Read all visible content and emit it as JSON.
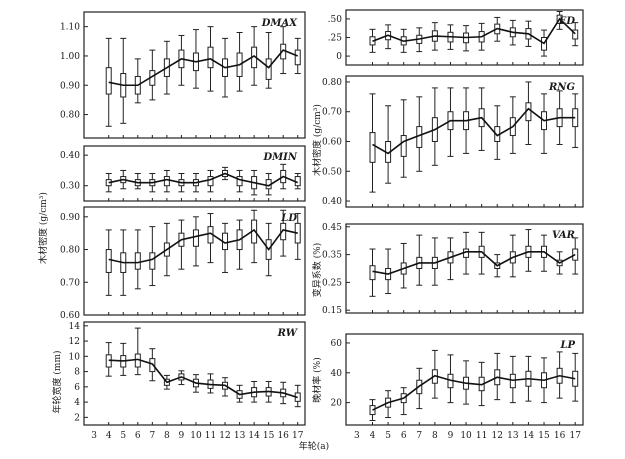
{
  "figure": {
    "shared_ylabels": {
      "density_left": "木材密度 (g/cm³)",
      "width_left": "年轮宽度 (mm)",
      "density_right": "木材密度 (g/cm³)",
      "var_right": "变异系数 (%)",
      "lp_right": "晚材率 (%)"
    },
    "xlabel": "年轮(a)"
  },
  "chart_data": [
    {
      "type": "box",
      "title": "DMAX",
      "ylim": [
        0.72,
        1.15
      ],
      "yticks": [
        0.8,
        0.9,
        1.0,
        1.1
      ],
      "ytick_labels": [
        "0.80",
        "0.90",
        "1.00",
        "1.10"
      ],
      "x": [
        4,
        5,
        6,
        7,
        8,
        9,
        10,
        11,
        12,
        13,
        14,
        15,
        16,
        17
      ],
      "xticks": [],
      "median": [
        0.91,
        0.9,
        0.9,
        0.93,
        0.96,
        0.99,
        0.98,
        0.99,
        0.96,
        0.97,
        1.0,
        0.96,
        1.02,
        1.0
      ],
      "q1": [
        0.87,
        0.86,
        0.87,
        0.9,
        0.93,
        0.96,
        0.95,
        0.96,
        0.93,
        0.93,
        0.96,
        0.92,
        0.99,
        0.97
      ],
      "q3": [
        0.96,
        0.94,
        0.93,
        0.95,
        0.99,
        1.02,
        1.01,
        1.03,
        0.99,
        1.01,
        1.03,
        0.99,
        1.04,
        1.02
      ],
      "whisker_low": [
        0.76,
        0.77,
        0.84,
        0.85,
        0.87,
        0.9,
        0.89,
        0.88,
        0.86,
        0.88,
        0.9,
        0.89,
        0.94,
        0.94
      ],
      "whisker_high": [
        1.06,
        1.06,
        0.99,
        1.02,
        1.05,
        1.07,
        1.09,
        1.1,
        1.06,
        1.08,
        1.1,
        1.08,
        1.1,
        1.06
      ]
    },
    {
      "type": "box",
      "title": "DMIN",
      "ylim": [
        0.25,
        0.43
      ],
      "yticks": [
        0.3,
        0.4
      ],
      "ytick_labels": [
        "0.30",
        "0.40"
      ],
      "x": [
        4,
        5,
        6,
        7,
        8,
        9,
        10,
        11,
        12,
        13,
        14,
        15,
        16,
        17
      ],
      "xticks": [],
      "median": [
        0.31,
        0.32,
        0.31,
        0.31,
        0.32,
        0.31,
        0.31,
        0.32,
        0.34,
        0.32,
        0.31,
        0.3,
        0.33,
        0.31
      ],
      "q1": [
        0.3,
        0.31,
        0.3,
        0.3,
        0.3,
        0.3,
        0.3,
        0.3,
        0.33,
        0.3,
        0.29,
        0.29,
        0.31,
        0.3
      ],
      "q3": [
        0.32,
        0.33,
        0.32,
        0.32,
        0.33,
        0.32,
        0.32,
        0.33,
        0.35,
        0.33,
        0.33,
        0.32,
        0.35,
        0.33
      ],
      "whisker_low": [
        0.28,
        0.29,
        0.29,
        0.28,
        0.28,
        0.28,
        0.28,
        0.28,
        0.32,
        0.28,
        0.27,
        0.27,
        0.29,
        0.29
      ],
      "whisker_high": [
        0.34,
        0.35,
        0.34,
        0.34,
        0.35,
        0.34,
        0.34,
        0.35,
        0.36,
        0.35,
        0.35,
        0.34,
        0.37,
        0.34
      ]
    },
    {
      "type": "box",
      "title": "LD",
      "ylim": [
        0.6,
        0.93
      ],
      "yticks": [
        0.6,
        0.7,
        0.8,
        0.9
      ],
      "ytick_labels": [
        "0.60",
        "0.70",
        "0.80",
        "0.90"
      ],
      "x": [
        4,
        5,
        6,
        7,
        8,
        9,
        10,
        11,
        12,
        13,
        14,
        15,
        16,
        17
      ],
      "xticks": [],
      "median": [
        0.77,
        0.76,
        0.76,
        0.77,
        0.8,
        0.83,
        0.84,
        0.85,
        0.82,
        0.83,
        0.86,
        0.8,
        0.86,
        0.85
      ],
      "q1": [
        0.73,
        0.73,
        0.74,
        0.74,
        0.78,
        0.81,
        0.81,
        0.82,
        0.8,
        0.8,
        0.82,
        0.77,
        0.83,
        0.82
      ],
      "q3": [
        0.8,
        0.79,
        0.79,
        0.79,
        0.82,
        0.85,
        0.86,
        0.87,
        0.85,
        0.86,
        0.89,
        0.83,
        0.88,
        0.88
      ],
      "whisker_low": [
        0.66,
        0.66,
        0.68,
        0.69,
        0.72,
        0.74,
        0.75,
        0.76,
        0.73,
        0.74,
        0.76,
        0.72,
        0.78,
        0.77
      ],
      "whisker_high": [
        0.86,
        0.86,
        0.86,
        0.87,
        0.88,
        0.89,
        0.9,
        0.91,
        0.88,
        0.89,
        0.92,
        0.88,
        0.92,
        0.91
      ]
    },
    {
      "type": "box",
      "title": "RW",
      "ylim": [
        1,
        14.5
      ],
      "yticks": [
        2,
        4,
        6,
        8,
        10,
        12,
        14
      ],
      "ytick_labels": [
        "2",
        "4",
        "6",
        "8",
        "10",
        "12",
        "14"
      ],
      "x": [
        4,
        5,
        6,
        7,
        8,
        9,
        10,
        11,
        12,
        13,
        14,
        15,
        16,
        17
      ],
      "xticks": [
        3,
        4,
        5,
        6,
        7,
        8,
        9,
        10,
        11,
        12,
        13,
        14,
        15,
        16,
        17
      ],
      "median": [
        9.5,
        9.4,
        9.6,
        9.0,
        6.6,
        7.3,
        6.5,
        6.3,
        6.2,
        5.0,
        5.3,
        5.4,
        5.2,
        4.6
      ],
      "q1": [
        8.6,
        8.6,
        8.6,
        8.0,
        6.2,
        6.9,
        6.0,
        5.8,
        5.7,
        4.5,
        4.7,
        4.8,
        4.7,
        4.1
      ],
      "q3": [
        10.2,
        10.1,
        10.3,
        9.7,
        7.0,
        7.7,
        7.0,
        6.9,
        6.6,
        5.5,
        5.9,
        5.9,
        5.7,
        5.2
      ],
      "whisker_low": [
        7.4,
        7.5,
        7.6,
        6.8,
        5.7,
        6.3,
        5.3,
        5.2,
        4.8,
        4.0,
        4.0,
        4.0,
        3.8,
        3.4
      ],
      "whisker_high": [
        11.8,
        11.7,
        13.7,
        11.0,
        7.5,
        8.1,
        7.6,
        7.7,
        7.2,
        6.2,
        6.7,
        6.7,
        6.6,
        6.2
      ]
    },
    {
      "type": "box",
      "title": "ED",
      "ylim": [
        -0.12,
        0.62
      ],
      "yticks": [
        0,
        0.25,
        0.5
      ],
      "ytick_labels": [
        "0",
        ".25",
        ".50"
      ],
      "x": [
        4,
        5,
        6,
        7,
        8,
        9,
        10,
        11,
        12,
        13,
        14,
        15,
        16,
        17
      ],
      "xticks": [],
      "median": [
        0.2,
        0.28,
        0.2,
        0.23,
        0.27,
        0.26,
        0.25,
        0.26,
        0.37,
        0.32,
        0.3,
        0.17,
        0.5,
        0.3
      ],
      "q1": [
        0.15,
        0.22,
        0.15,
        0.17,
        0.2,
        0.19,
        0.18,
        0.19,
        0.3,
        0.26,
        0.23,
        0.08,
        0.44,
        0.23
      ],
      "q3": [
        0.26,
        0.33,
        0.26,
        0.28,
        0.34,
        0.32,
        0.31,
        0.33,
        0.43,
        0.38,
        0.37,
        0.25,
        0.55,
        0.35
      ],
      "whisker_low": [
        0.05,
        0.1,
        0.05,
        0.06,
        0.08,
        0.09,
        0.07,
        0.08,
        0.2,
        0.15,
        0.13,
        0.0,
        0.36,
        0.14
      ],
      "whisker_high": [
        0.36,
        0.42,
        0.36,
        0.38,
        0.45,
        0.42,
        0.41,
        0.44,
        0.52,
        0.48,
        0.47,
        0.35,
        0.6,
        0.45
      ]
    },
    {
      "type": "box",
      "title": "RNG",
      "ylim": [
        0.38,
        0.82
      ],
      "yticks": [
        0.4,
        0.5,
        0.6,
        0.7,
        0.8
      ],
      "ytick_labels": [
        "0.40",
        "0.50",
        "0.60",
        "0.70",
        "0.80"
      ],
      "x": [
        4,
        5,
        6,
        7,
        8,
        9,
        10,
        11,
        12,
        13,
        14,
        15,
        16,
        17
      ],
      "xticks": [],
      "median": [
        0.59,
        0.56,
        0.6,
        0.62,
        0.64,
        0.67,
        0.67,
        0.68,
        0.62,
        0.65,
        0.71,
        0.67,
        0.68,
        0.68
      ],
      "q1": [
        0.53,
        0.53,
        0.55,
        0.58,
        0.6,
        0.64,
        0.64,
        0.65,
        0.6,
        0.62,
        0.67,
        0.64,
        0.65,
        0.65
      ],
      "q3": [
        0.63,
        0.6,
        0.62,
        0.65,
        0.68,
        0.7,
        0.7,
        0.71,
        0.65,
        0.68,
        0.73,
        0.7,
        0.71,
        0.71
      ],
      "whisker_low": [
        0.43,
        0.46,
        0.48,
        0.5,
        0.52,
        0.55,
        0.56,
        0.57,
        0.54,
        0.56,
        0.59,
        0.56,
        0.59,
        0.58
      ],
      "whisker_high": [
        0.76,
        0.72,
        0.74,
        0.75,
        0.78,
        0.78,
        0.78,
        0.78,
        0.72,
        0.75,
        0.8,
        0.76,
        0.77,
        0.76
      ]
    },
    {
      "type": "box",
      "title": "VAR",
      "ylim": [
        0.14,
        0.46
      ],
      "yticks": [
        0.15,
        0.25,
        0.35,
        0.45
      ],
      "ytick_labels": [
        "0.15",
        "0.25",
        "0.35",
        "0.45"
      ],
      "x": [
        4,
        5,
        6,
        7,
        8,
        9,
        10,
        11,
        12,
        13,
        14,
        15,
        16,
        17
      ],
      "xticks": [],
      "median": [
        0.29,
        0.28,
        0.3,
        0.32,
        0.32,
        0.34,
        0.36,
        0.36,
        0.31,
        0.34,
        0.36,
        0.36,
        0.32,
        0.35
      ],
      "q1": [
        0.26,
        0.26,
        0.28,
        0.3,
        0.3,
        0.32,
        0.34,
        0.34,
        0.3,
        0.32,
        0.34,
        0.34,
        0.31,
        0.33
      ],
      "q3": [
        0.31,
        0.3,
        0.32,
        0.34,
        0.34,
        0.36,
        0.37,
        0.38,
        0.32,
        0.36,
        0.38,
        0.38,
        0.33,
        0.37
      ],
      "whisker_low": [
        0.2,
        0.21,
        0.23,
        0.24,
        0.24,
        0.26,
        0.28,
        0.28,
        0.27,
        0.27,
        0.29,
        0.29,
        0.28,
        0.28
      ],
      "whisker_high": [
        0.37,
        0.37,
        0.39,
        0.42,
        0.41,
        0.41,
        0.43,
        0.43,
        0.35,
        0.42,
        0.44,
        0.42,
        0.36,
        0.41
      ]
    },
    {
      "type": "box",
      "title": "LP",
      "ylim": [
        5,
        66
      ],
      "yticks": [
        20,
        40,
        60
      ],
      "ytick_labels": [
        "20",
        "40",
        "60"
      ],
      "x": [
        4,
        5,
        6,
        7,
        8,
        9,
        10,
        11,
        12,
        13,
        14,
        15,
        16,
        17
      ],
      "xticks": [
        3,
        4,
        5,
        6,
        7,
        8,
        9,
        10,
        11,
        12,
        13,
        14,
        15,
        16,
        17
      ],
      "median": [
        15,
        20,
        23,
        31,
        38,
        35,
        33,
        32,
        37,
        35,
        36,
        35,
        38,
        36
      ],
      "q1": [
        12,
        17,
        20,
        26,
        33,
        30,
        29,
        28,
        32,
        30,
        31,
        30,
        33,
        31
      ],
      "q3": [
        18,
        23,
        26,
        35,
        42,
        39,
        37,
        37,
        42,
        39,
        41,
        40,
        43,
        41
      ],
      "whisker_low": [
        8,
        10,
        12,
        16,
        23,
        20,
        19,
        18,
        22,
        20,
        21,
        20,
        23,
        21
      ],
      "whisker_high": [
        22,
        28,
        30,
        43,
        55,
        52,
        48,
        47,
        53,
        51,
        51,
        50,
        54,
        53
      ]
    }
  ]
}
